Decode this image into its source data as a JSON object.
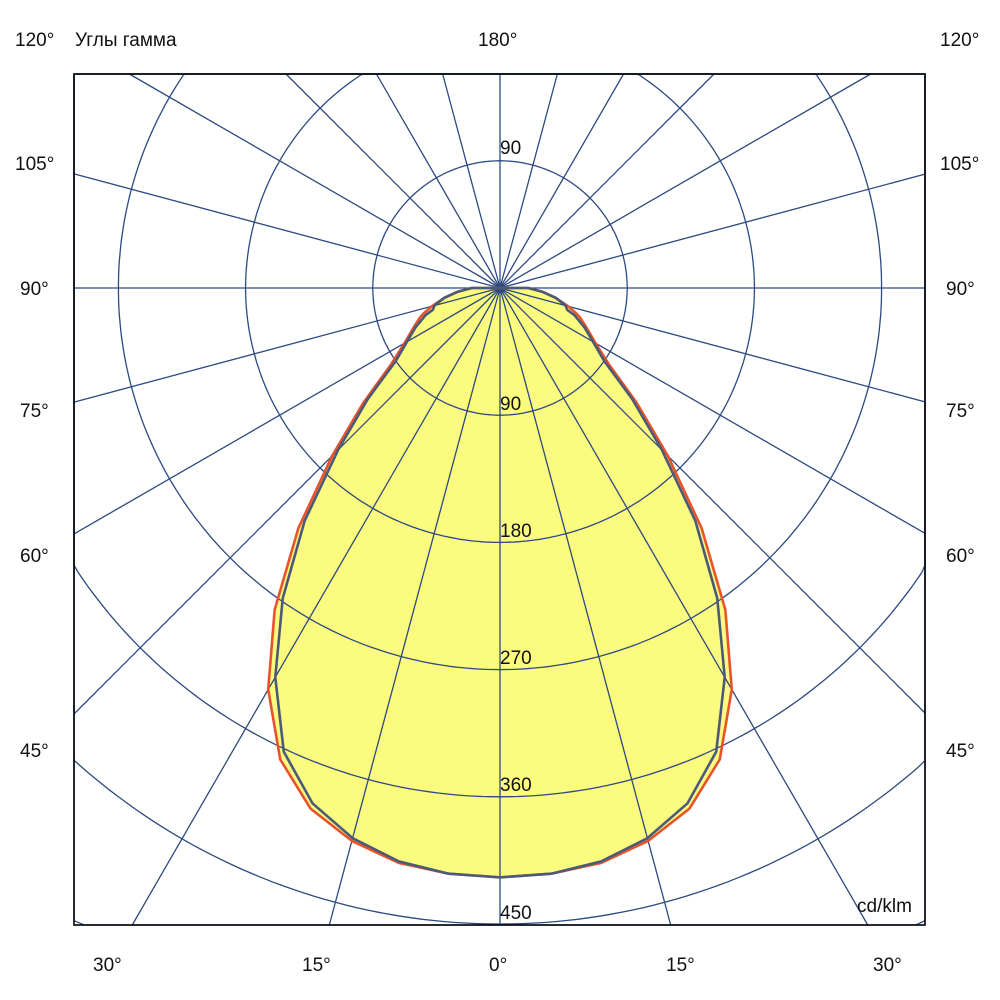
{
  "chart_data": {
    "type": "polar",
    "title": "Углы гамма",
    "unit_label": "cd/klm",
    "top_label": "180°",
    "left_angle_labels": [
      "120°",
      "105°",
      "90°",
      "75°",
      "60°",
      "45°"
    ],
    "right_angle_labels": [
      "120°",
      "105°",
      "90°",
      "75°",
      "60°",
      "45°"
    ],
    "bottom_angle_labels": [
      "30°",
      "15°",
      "0°",
      "15°",
      "30°"
    ],
    "radial_tick_labels_upper": [
      "90"
    ],
    "radial_tick_labels_lower": [
      "90",
      "180",
      "270",
      "360",
      "450"
    ],
    "radial_step": 90,
    "radial_max": 450,
    "spoke_step_deg": 15,
    "grid": true,
    "angles_deg": [
      0,
      5,
      10,
      15,
      20,
      25,
      30,
      35,
      40,
      45,
      50,
      55,
      60,
      65,
      70,
      72,
      75,
      80,
      85,
      90
    ],
    "series": [
      {
        "color": "#e8532b",
        "values": [
          417,
          416,
          413,
          405,
          392,
          368,
          328,
          278,
          222,
          168,
          126,
          94,
          78,
          68,
          60,
          56,
          50,
          40,
          30,
          20
        ]
      },
      {
        "color": "#4b5a78",
        "values": [
          417,
          416,
          412,
          403,
          388,
          362,
          318,
          268,
          215,
          162,
          122,
          90,
          76,
          66,
          56,
          50,
          48,
          40,
          30,
          20
        ]
      }
    ],
    "colors": {
      "grid": "#2d4a80",
      "fill": "#fbfb80",
      "frame": "#000000"
    }
  }
}
